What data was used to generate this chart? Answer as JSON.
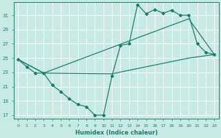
{
  "xlabel": "Humidex (Indice chaleur)",
  "bg_color": "#c8eae4",
  "grid_color": "#ffffff",
  "line_color": "#1a7a6e",
  "xlim": [
    -0.5,
    23.5
  ],
  "ylim": [
    16.5,
    32.8
  ],
  "xticks": [
    0,
    1,
    2,
    3,
    4,
    5,
    6,
    7,
    8,
    9,
    10,
    11,
    12,
    13,
    14,
    15,
    16,
    17,
    18,
    19,
    20,
    21,
    22,
    23
  ],
  "yticks": [
    17,
    19,
    21,
    23,
    25,
    27,
    29,
    31
  ],
  "line1_x": [
    0,
    1,
    2,
    3,
    4,
    5,
    6,
    7,
    8,
    9,
    10,
    11,
    12,
    13,
    14,
    15,
    16,
    17,
    18,
    19,
    20,
    21,
    22,
    23
  ],
  "line1_y": [
    24.8,
    23.8,
    22.9,
    22.9,
    21.2,
    20.3,
    19.3,
    18.5,
    18.2,
    17.0,
    17.0,
    22.5,
    26.8,
    27.0,
    32.5,
    31.2,
    31.8,
    31.3,
    31.7,
    31.0,
    31.0,
    27.0,
    25.8,
    25.5
  ],
  "line2_x": [
    0,
    3,
    11,
    20,
    23
  ],
  "line2_y": [
    24.8,
    22.9,
    26.5,
    30.5,
    25.5
  ],
  "line3_x": [
    0,
    3,
    11,
    20,
    23
  ],
  "line3_y": [
    24.8,
    22.9,
    22.8,
    25.0,
    25.5
  ]
}
